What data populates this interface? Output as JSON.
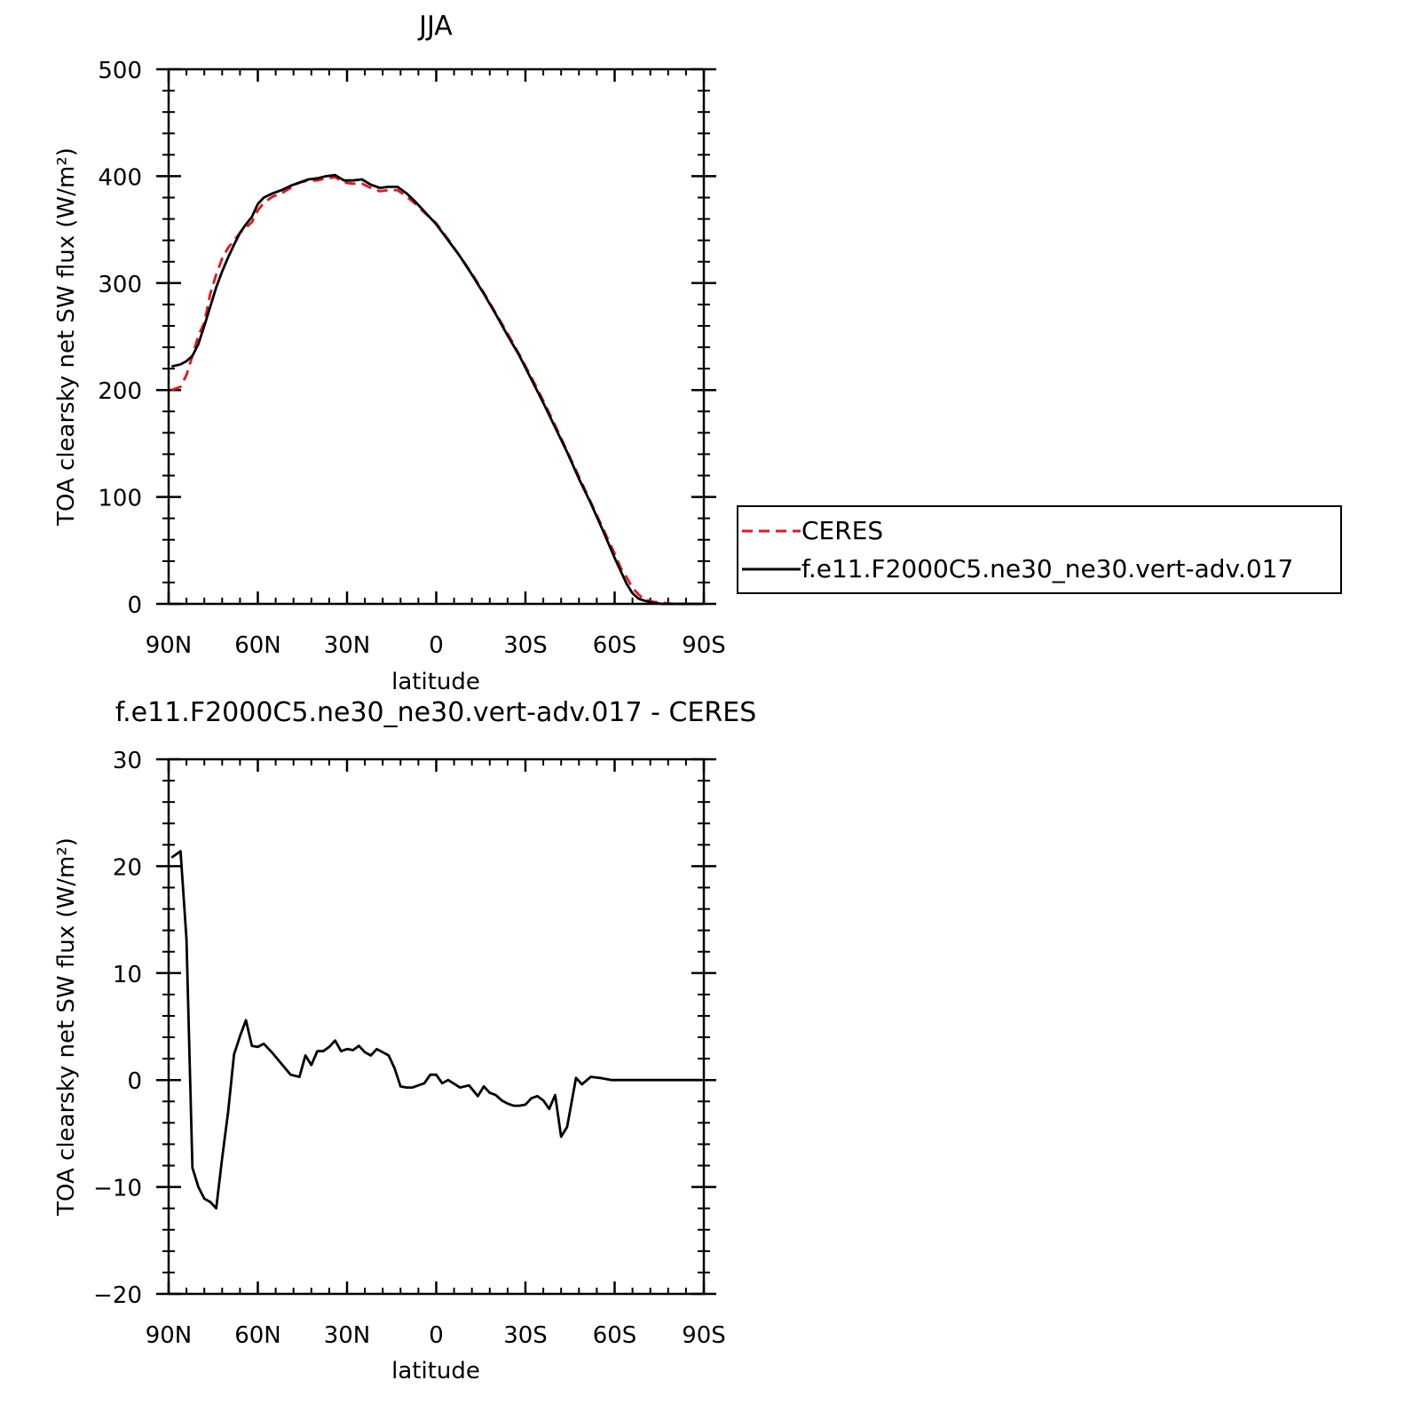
{
  "chart_data": [
    {
      "type": "line",
      "title": "JJA",
      "xlabel": "latitude",
      "ylabel": "TOA clearsky net SW flux (W/m²)",
      "xlim": [
        90,
        -90
      ],
      "ylim": [
        0,
        500
      ],
      "x_ticks": [
        90,
        60,
        30,
        0,
        -30,
        -60,
        -90
      ],
      "x_tick_labels": [
        "90N",
        "60N",
        "30N",
        "0",
        "30S",
        "60S",
        "90S"
      ],
      "y_ticks": [
        0,
        100,
        200,
        300,
        400,
        500
      ],
      "y_tick_labels": [
        "0",
        "100",
        "200",
        "300",
        "400",
        "500"
      ],
      "grid": false,
      "legend": {
        "placement": "right",
        "entries": [
          {
            "label": "CERES",
            "color": "#e8141b",
            "dash": "dashed"
          },
          {
            "label": "f.e11.F2000C5.ne30_ne30.vert-adv.017",
            "color": "#000000",
            "dash": "solid"
          }
        ]
      },
      "series": [
        {
          "name": "CERES",
          "color": "#e8141b",
          "dash": "dashed",
          "x": [
            89,
            86,
            84,
            82,
            80,
            78,
            76,
            74,
            72,
            70,
            68,
            66,
            64,
            62,
            60,
            58,
            55,
            52,
            49,
            46,
            43,
            40,
            37,
            34,
            31,
            28,
            25,
            22,
            19,
            16,
            13,
            10,
            7,
            4,
            0,
            -4,
            -8,
            -12,
            -16,
            -20,
            -24,
            -28,
            -32,
            -36,
            -40,
            -44,
            -48,
            -52,
            -56,
            -60,
            -62,
            -64,
            -66,
            -68,
            -70,
            -73,
            -76,
            -80,
            -84,
            -89
          ],
          "y": [
            200,
            203,
            214,
            232,
            251,
            263,
            290,
            308,
            323,
            333,
            340,
            347,
            352,
            357,
            368,
            375,
            381,
            384,
            389,
            394,
            396,
            396,
            398,
            399,
            394,
            393,
            393,
            389,
            386,
            387,
            387,
            381,
            374,
            366,
            356,
            341,
            325,
            309,
            291,
            272,
            253,
            233,
            212,
            190,
            167,
            143,
            119,
            95,
            71,
            47,
            34,
            25,
            15,
            9,
            4,
            2,
            1,
            0,
            0,
            0
          ]
        },
        {
          "name": "f.e11.F2000C5.ne30_ne30.vert-adv.017",
          "color": "#000000",
          "dash": "solid",
          "x": [
            89,
            86,
            84,
            82,
            80,
            78,
            76,
            74,
            72,
            70,
            68,
            66,
            64,
            62,
            60,
            58,
            55,
            52,
            49,
            46,
            43,
            40,
            37,
            34,
            31,
            28,
            25,
            22,
            19,
            16,
            13,
            10,
            7,
            4,
            0,
            -4,
            -8,
            -12,
            -16,
            -20,
            -24,
            -28,
            -32,
            -36,
            -40,
            -44,
            -48,
            -52,
            -56,
            -60,
            -62,
            -64,
            -66,
            -68,
            -70,
            -73,
            -76,
            -80,
            -84,
            -89
          ],
          "y": [
            222,
            224,
            227,
            232,
            243,
            260,
            278,
            296,
            311,
            324,
            336,
            347,
            355,
            362,
            374,
            380,
            384,
            387,
            391,
            394,
            397,
            398,
            400,
            401,
            396,
            396,
            397,
            392,
            389,
            390,
            390,
            384,
            376,
            367,
            355,
            340,
            325,
            308,
            290,
            271,
            251,
            232,
            210,
            188,
            165,
            142,
            117,
            94,
            69,
            43,
            31,
            19,
            10,
            5,
            3,
            1,
            0,
            0,
            0,
            0
          ]
        }
      ]
    },
    {
      "type": "line",
      "title": "f.e11.F2000C5.ne30_ne30.vert-adv.017 - CERES",
      "xlabel": "latitude",
      "ylabel": "TOA clearsky net SW flux (W/m²)",
      "xlim": [
        90,
        -90
      ],
      "ylim": [
        -20,
        30
      ],
      "x_ticks": [
        90,
        60,
        30,
        0,
        -30,
        -60,
        -90
      ],
      "x_tick_labels": [
        "90N",
        "60N",
        "30N",
        "0",
        "30S",
        "60S",
        "90S"
      ],
      "y_ticks": [
        -20,
        -10,
        0,
        10,
        20,
        30
      ],
      "y_tick_labels": [
        "−20",
        "−10",
        "0",
        "10",
        "20",
        "30"
      ],
      "grid": false,
      "series": [
        {
          "color": "#000000",
          "dash": "solid",
          "x": [
            89,
            86,
            84,
            82,
            80,
            78,
            76,
            74,
            72,
            70,
            68,
            66,
            64,
            62,
            60,
            58,
            55,
            52,
            49,
            46,
            44,
            42,
            40,
            38,
            36,
            34,
            32,
            30,
            28,
            26,
            24,
            22,
            20,
            18,
            16,
            14,
            12,
            10,
            8,
            6,
            4,
            2,
            0,
            -2,
            -4,
            -8,
            -11,
            -14,
            -16,
            -18,
            -20,
            -22,
            -24,
            -26,
            -28,
            -30,
            -32,
            -34,
            -36,
            -38,
            -40,
            -42,
            -44,
            -47,
            -49,
            -52,
            -55,
            -57,
            -59,
            -61,
            -63,
            -66,
            -68,
            -70,
            -72,
            -75,
            -80,
            -84,
            -89
          ],
          "y": [
            20.8,
            21.4,
            13.2,
            -8.2,
            -10.0,
            -11.1,
            -11.4,
            -12.0,
            -7.3,
            -3.0,
            2.4,
            4.1,
            5.6,
            3.2,
            3.1,
            3.4,
            2.5,
            1.5,
            0.5,
            0.3,
            2.3,
            1.4,
            2.7,
            2.7,
            3.1,
            3.7,
            2.7,
            2.9,
            2.8,
            3.2,
            2.6,
            2.3,
            2.9,
            2.6,
            2.3,
            1.1,
            -0.6,
            -0.7,
            -0.7,
            -0.5,
            -0.3,
            0.5,
            0.5,
            -0.3,
            0.0,
            -0.7,
            -0.5,
            -1.5,
            -0.6,
            -1.2,
            -1.4,
            -1.9,
            -2.2,
            -2.4,
            -2.4,
            -2.3,
            -1.7,
            -1.5,
            -1.9,
            -2.7,
            -1.4,
            -5.3,
            -4.4,
            0.2,
            -0.4,
            0.3,
            0.2,
            0.1,
            0.0,
            0.0,
            0.0,
            0.0,
            0.0,
            0.0,
            0.0,
            0.0,
            0.0,
            0.0,
            0.0
          ]
        }
      ]
    }
  ]
}
